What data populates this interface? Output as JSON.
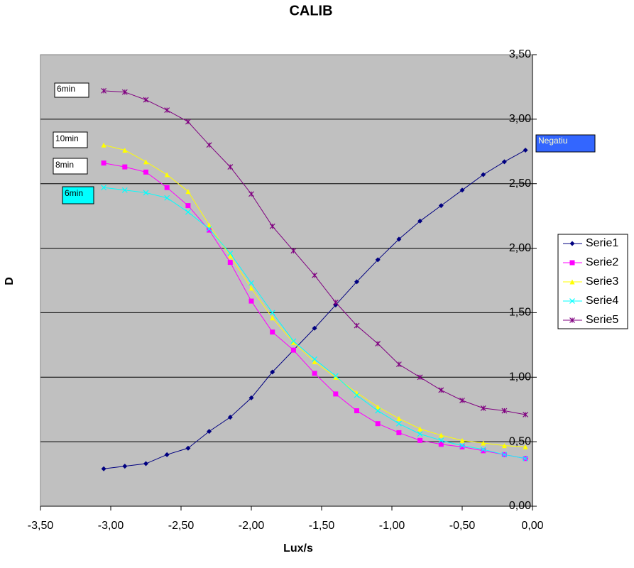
{
  "chart_data": {
    "type": "line",
    "title": "CALIB",
    "x_label": "Lux/s",
    "y_label": "D",
    "x": [
      -3.05,
      -2.9,
      -2.75,
      -2.6,
      -2.45,
      -2.3,
      -2.15,
      -2.0,
      -1.85,
      -1.7,
      -1.55,
      -1.4,
      -1.25,
      -1.1,
      -0.95,
      -0.8,
      -0.65,
      -0.5,
      -0.35,
      -0.2,
      -0.05
    ],
    "series": [
      {
        "name": "Serie1",
        "color": "#000080",
        "marker": "diamond",
        "values": [
          0.29,
          0.31,
          0.33,
          0.4,
          0.45,
          0.58,
          0.69,
          0.84,
          1.04,
          1.21,
          1.38,
          1.56,
          1.74,
          1.91,
          2.07,
          2.21,
          2.33,
          2.45,
          2.57,
          2.67,
          2.76
        ]
      },
      {
        "name": "Serie2",
        "color": "#ff00ff",
        "marker": "square",
        "values": [
          2.66,
          2.63,
          2.59,
          2.47,
          2.33,
          2.14,
          1.89,
          1.59,
          1.35,
          1.21,
          1.03,
          0.87,
          0.74,
          0.64,
          0.57,
          0.51,
          0.48,
          0.46,
          0.43,
          0.4,
          0.37
        ]
      },
      {
        "name": "Serie3",
        "color": "#ffff00",
        "marker": "triangle",
        "values": [
          2.8,
          2.76,
          2.67,
          2.57,
          2.44,
          2.18,
          1.94,
          1.69,
          1.46,
          1.27,
          1.12,
          1.0,
          0.88,
          0.77,
          0.68,
          0.6,
          0.55,
          0.51,
          0.49,
          0.47,
          0.46
        ]
      },
      {
        "name": "Serie4",
        "color": "#00ffff",
        "marker": "x",
        "values": [
          2.47,
          2.45,
          2.43,
          2.39,
          2.28,
          2.15,
          1.96,
          1.73,
          1.5,
          1.28,
          1.14,
          1.01,
          0.86,
          0.74,
          0.64,
          0.56,
          0.51,
          0.47,
          0.44,
          0.4,
          0.37
        ]
      },
      {
        "name": "Serie5",
        "color": "#800080",
        "marker": "star",
        "values": [
          3.22,
          3.21,
          3.15,
          3.07,
          2.98,
          2.8,
          2.63,
          2.42,
          2.17,
          1.98,
          1.79,
          1.58,
          1.4,
          1.26,
          1.1,
          1.0,
          0.9,
          0.82,
          0.76,
          0.74,
          0.71
        ]
      }
    ],
    "annotations": [
      "6min",
      "10min",
      "8min",
      "6min",
      "Negatiu"
    ],
    "xlim": [
      -3.5,
      0
    ],
    "xticks": [
      {
        "value": -3.5,
        "label": "-3,50"
      },
      {
        "value": -3.0,
        "label": "-3,00"
      },
      {
        "value": -2.5,
        "label": "-2,50"
      },
      {
        "value": -2.0,
        "label": "-2,00"
      },
      {
        "value": -1.5,
        "label": "-1,50"
      },
      {
        "value": -1.0,
        "label": "-1,00"
      },
      {
        "value": -0.5,
        "label": "-0,50"
      },
      {
        "value": 0,
        "label": "0,00"
      }
    ],
    "ylim": [
      0,
      3.5
    ],
    "yticks": [
      {
        "value": 0,
        "label": "0,00"
      },
      {
        "value": 0.5,
        "label": "0,50"
      },
      {
        "value": 1.0,
        "label": "1,00"
      },
      {
        "value": 1.5,
        "label": "1,50"
      },
      {
        "value": 2.0,
        "label": "2,00"
      },
      {
        "value": 2.5,
        "label": "2,50"
      },
      {
        "value": 3.0,
        "label": "3,00"
      },
      {
        "value": 3.5,
        "label": "3,50"
      }
    ],
    "grid": true
  }
}
